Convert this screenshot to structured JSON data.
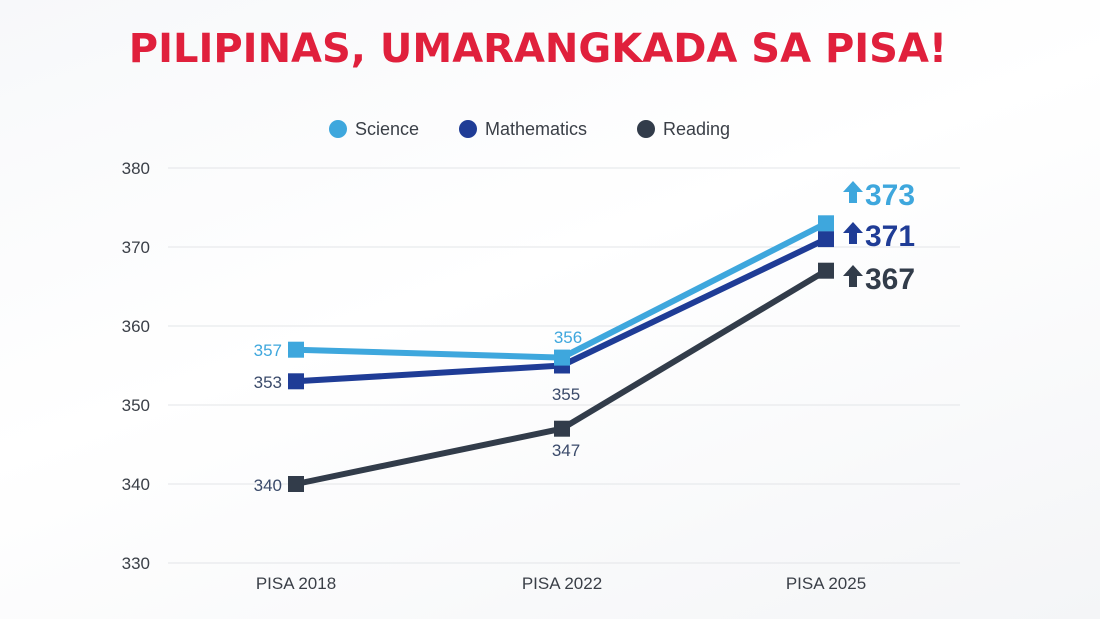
{
  "chart_data": {
    "type": "line",
    "title": "PILIPINAS, UMARANGKADA SA PISA!",
    "categories": [
      "PISA 2018",
      "PISA 2022",
      "PISA 2025"
    ],
    "ylim": [
      330,
      380
    ],
    "yticks": [
      330,
      340,
      350,
      360,
      370,
      380
    ],
    "grid": true,
    "legend_position": "top-center",
    "series": [
      {
        "name": "Science",
        "values": [
          357,
          356,
          373
        ],
        "color": "#3ea7dd",
        "labels": [
          "357",
          "356",
          "373"
        ]
      },
      {
        "name": "Mathematics",
        "values": [
          353,
          355,
          371
        ],
        "color": "#1f3c96",
        "labels": [
          "353",
          "355",
          "371"
        ]
      },
      {
        "name": "Reading",
        "values": [
          340,
          347,
          367
        ],
        "color": "#323c4a",
        "labels": [
          "340",
          "347",
          "367"
        ]
      }
    ]
  },
  "colors": {
    "title": "#e0203c",
    "grid": "#e3e5e8",
    "tick_text": "#3a3f47"
  }
}
